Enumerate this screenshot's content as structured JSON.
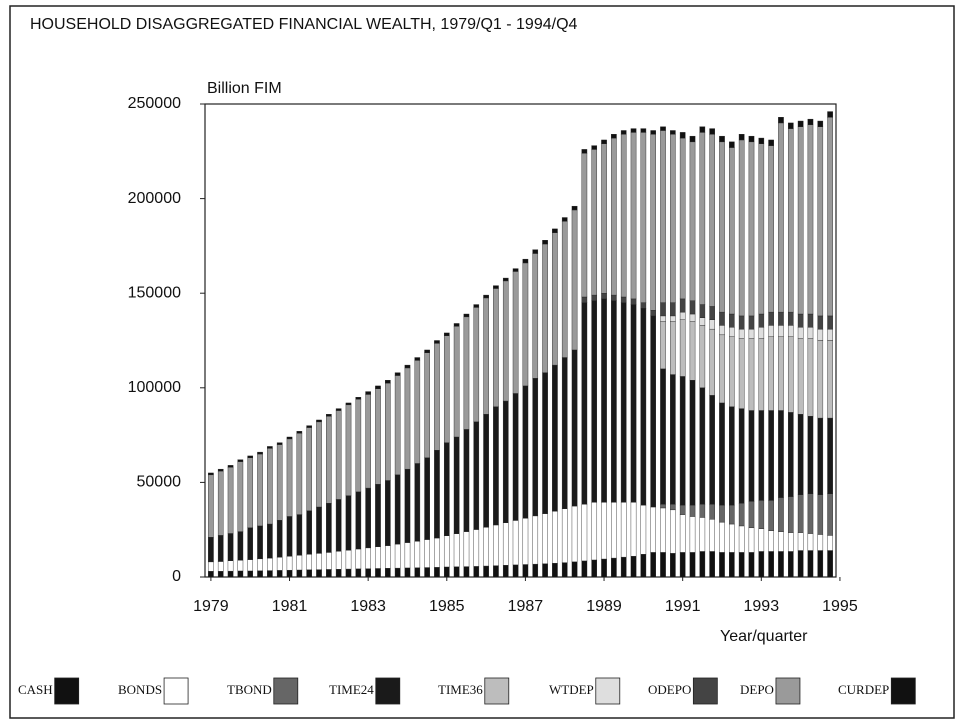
{
  "chart_data": {
    "type": "stacked_bar",
    "title": "HOUSEHOLD DISAGGREGATED FINANCIAL WEALTH, 1979/Q1 - 1994/Q4",
    "y_label": "Billion FIM",
    "x_label": "Year/quarter",
    "x": [
      1979,
      1979.25,
      1979.5,
      1979.75,
      1980,
      1980.25,
      1980.5,
      1980.75,
      1981,
      1981.25,
      1981.5,
      1981.75,
      1982,
      1982.25,
      1982.5,
      1982.75,
      1983,
      1983.25,
      1983.5,
      1983.75,
      1984,
      1984.25,
      1984.5,
      1984.75,
      1985,
      1985.25,
      1985.5,
      1985.75,
      1986,
      1986.25,
      1986.5,
      1986.75,
      1987,
      1987.25,
      1987.5,
      1987.75,
      1988,
      1988.25,
      1988.5,
      1988.75,
      1989,
      1989.25,
      1989.5,
      1989.75,
      1990,
      1990.25,
      1990.5,
      1990.75,
      1991,
      1991.25,
      1991.5,
      1991.75,
      1992,
      1992.25,
      1992.5,
      1992.75,
      1993,
      1993.25,
      1993.5,
      1993.75,
      1994,
      1994.25,
      1994.5,
      1994.75
    ],
    "xlim": [
      1978.85,
      1994.9
    ],
    "xticks": [
      1979,
      1981,
      1983,
      1985,
      1987,
      1989,
      1991,
      1993,
      1995
    ],
    "ylim": [
      0,
      250000
    ],
    "yticks": [
      0,
      50000,
      100000,
      150000,
      200000,
      250000
    ],
    "series": [
      {
        "name": "CASH",
        "color": "#111111",
        "values": [
          3000,
          3000,
          3100,
          3200,
          3200,
          3300,
          3400,
          3500,
          3600,
          3700,
          3800,
          3900,
          4000,
          4100,
          4200,
          4300,
          4400,
          4500,
          4600,
          4700,
          4800,
          4900,
          5000,
          5100,
          5300,
          5400,
          5500,
          5600,
          5800,
          6000,
          6200,
          6400,
          6600,
          6800,
          7000,
          7300,
          7600,
          8000,
          8500,
          9000,
          9500,
          10000,
          10500,
          11000,
          12000,
          13000,
          13000,
          12500,
          13000,
          13000,
          13500,
          13500,
          13000,
          13000,
          13000,
          13000,
          13500,
          13500,
          13500,
          13500,
          14000,
          14000,
          14000,
          14000
        ]
      },
      {
        "name": "BONDS",
        "color": "#ffffff",
        "values": [
          5000,
          5200,
          5500,
          5700,
          6000,
          6300,
          6600,
          7000,
          7400,
          7800,
          8200,
          8600,
          9000,
          9500,
          10000,
          10500,
          11000,
          11500,
          12000,
          12700,
          13400,
          14000,
          14800,
          15500,
          16500,
          17500,
          18500,
          19500,
          20500,
          21500,
          22500,
          23500,
          24500,
          25500,
          26500,
          27500,
          28500,
          29500,
          30000,
          30500,
          30000,
          29500,
          29000,
          28500,
          26000,
          24000,
          23500,
          23000,
          20000,
          19000,
          18000,
          17000,
          16000,
          15000,
          14000,
          13000,
          12000,
          11000,
          10500,
          10000,
          9500,
          9000,
          8500,
          8000
        ]
      },
      {
        "name": "TBOND",
        "color": "#666666",
        "values": [
          0,
          0,
          0,
          0,
          0,
          0,
          0,
          0,
          0,
          0,
          0,
          0,
          0,
          0,
          0,
          0,
          0,
          0,
          0,
          0,
          0,
          0,
          0,
          0,
          0,
          0,
          0,
          0,
          0,
          0,
          0,
          0,
          0,
          0,
          0,
          0,
          0,
          0,
          0,
          0,
          0,
          0,
          0,
          0,
          0,
          0,
          2000,
          3000,
          5000,
          6000,
          7000,
          8000,
          9000,
          10000,
          12000,
          14000,
          15000,
          16000,
          18000,
          19000,
          20000,
          21000,
          21000,
          22000
        ]
      },
      {
        "name": "TIME24",
        "color": "#1a1a1a",
        "values": [
          13000,
          13800,
          14400,
          15100,
          16800,
          17400,
          18000,
          19500,
          21000,
          21500,
          23000,
          24500,
          26000,
          27400,
          28800,
          30200,
          31600,
          33000,
          34400,
          36600,
          38800,
          41100,
          43200,
          46400,
          49200,
          51100,
          54000,
          56900,
          59700,
          62500,
          64300,
          67100,
          69900,
          72700,
          74500,
          77200,
          79900,
          82500,
          106500,
          106500,
          107500,
          106500,
          105500,
          104500,
          104000,
          101000,
          71500,
          68500,
          68000,
          66000,
          61500,
          57500,
          54000,
          52000,
          50000,
          48000,
          47500,
          47500,
          46000,
          44500,
          42500,
          41000,
          40500,
          40000
        ]
      },
      {
        "name": "TIME36",
        "color": "#bdbdbd",
        "values": [
          0,
          0,
          0,
          0,
          0,
          0,
          0,
          0,
          0,
          0,
          0,
          0,
          0,
          0,
          0,
          0,
          0,
          0,
          0,
          0,
          0,
          0,
          0,
          0,
          0,
          0,
          0,
          0,
          0,
          0,
          0,
          0,
          0,
          0,
          0,
          0,
          0,
          0,
          0,
          0,
          0,
          0,
          0,
          0,
          0,
          0,
          25000,
          28000,
          30000,
          31000,
          33000,
          35000,
          36000,
          37000,
          37000,
          38000,
          38000,
          39000,
          39000,
          40000,
          40000,
          41000,
          41000,
          41000
        ]
      },
      {
        "name": "WTDEP",
        "color": "#dedede",
        "values": [
          0,
          0,
          0,
          0,
          0,
          0,
          0,
          0,
          0,
          0,
          0,
          0,
          0,
          0,
          0,
          0,
          0,
          0,
          0,
          0,
          0,
          0,
          0,
          0,
          0,
          0,
          0,
          0,
          0,
          0,
          0,
          0,
          0,
          0,
          0,
          0,
          0,
          0,
          0,
          0,
          0,
          0,
          0,
          0,
          0,
          0,
          3000,
          3000,
          4000,
          4000,
          4000,
          5000,
          5000,
          5000,
          5000,
          5000,
          6000,
          6000,
          6000,
          6000,
          6000,
          6000,
          6000,
          6000
        ]
      },
      {
        "name": "ODEPO",
        "color": "#444444",
        "values": [
          0,
          0,
          0,
          0,
          0,
          0,
          0,
          0,
          0,
          0,
          0,
          0,
          0,
          0,
          0,
          0,
          0,
          0,
          0,
          0,
          0,
          0,
          0,
          0,
          0,
          0,
          0,
          0,
          0,
          0,
          0,
          0,
          0,
          0,
          0,
          0,
          0,
          0,
          3000,
          3000,
          3000,
          3000,
          3000,
          3000,
          3000,
          3000,
          7000,
          7000,
          7000,
          7000,
          7000,
          7000,
          7000,
          7000,
          7000,
          7000,
          7000,
          7000,
          7000,
          7000,
          7000,
          7000,
          7000,
          7000
        ]
      },
      {
        "name": "DEPO",
        "color": "#9a9a9a",
        "values": [
          33000,
          34000,
          35000,
          37000,
          37000,
          38000,
          40000,
          40000,
          41000,
          43000,
          44000,
          45000,
          46000,
          47000,
          48000,
          49000,
          49500,
          50500,
          51500,
          52500,
          53500,
          54500,
          55500,
          56500,
          56500,
          58500,
          59500,
          60500,
          61500,
          62500,
          63500,
          64500,
          65000,
          66000,
          68000,
          70000,
          72000,
          74000,
          76000,
          77000,
          79000,
          83000,
          86000,
          88000,
          90000,
          93000,
          91000,
          89000,
          85000,
          84000,
          91000,
          91000,
          90000,
          88000,
          93000,
          92000,
          90000,
          88000,
          100000,
          97000,
          99000,
          100000,
          100000,
          105000
        ]
      },
      {
        "name": "CURDEP",
        "color": "#111111",
        "values": [
          1000,
          1000,
          1000,
          1000,
          1000,
          1000,
          1000,
          1000,
          1000,
          1000,
          1000,
          1000,
          1000,
          1000,
          1000,
          1000,
          1500,
          1500,
          1500,
          1500,
          1500,
          1500,
          1500,
          1500,
          1500,
          1500,
          1500,
          1500,
          1500,
          1500,
          1500,
          1500,
          2000,
          2000,
          2000,
          2000,
          2000,
          2000,
          2000,
          2000,
          2000,
          2000,
          2000,
          2000,
          2000,
          2000,
          2000,
          2000,
          3000,
          3000,
          3000,
          3000,
          3000,
          3000,
          3000,
          3000,
          3000,
          3000,
          3000,
          3000,
          3000,
          3000,
          3000,
          3000
        ]
      }
    ]
  }
}
